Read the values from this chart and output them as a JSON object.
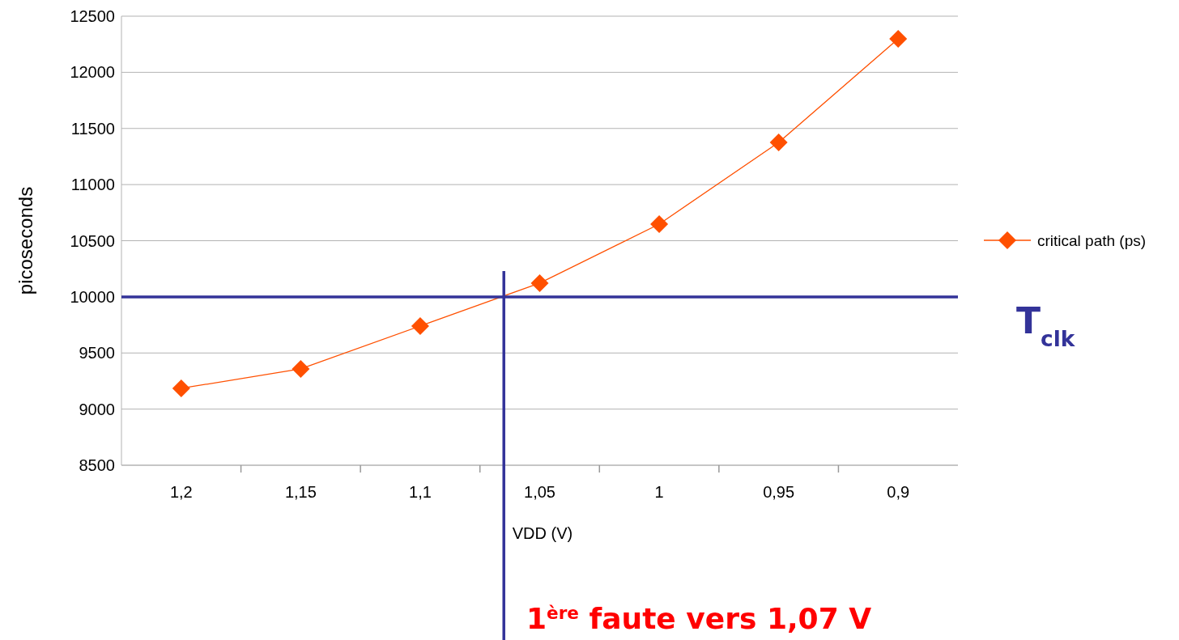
{
  "chart_data": {
    "type": "line",
    "xlabel": "VDD (V)",
    "ylabel": "picoseconds",
    "x": [
      1.2,
      1.15,
      1.1,
      1.05,
      1,
      0.95,
      0.9
    ],
    "series": [
      {
        "name": "critical path (ps)",
        "color": "#ff5000",
        "values": [
          9185,
          9358,
          9740,
          10122,
          10648,
          11376,
          12298
        ]
      }
    ],
    "xlim": [
      1.225,
      0.875
    ],
    "xticks": [
      {
        "value": 1.2,
        "label": "1,2"
      },
      {
        "value": 1.175,
        "label": null
      },
      {
        "value": 1.15,
        "label": "1,15"
      },
      {
        "value": 1.125,
        "label": null
      },
      {
        "value": 1.1,
        "label": "1,1"
      },
      {
        "value": 1.075,
        "label": null
      },
      {
        "value": 1.05,
        "label": "1,05"
      },
      {
        "value": 1.025,
        "label": null
      },
      {
        "value": 1,
        "label": "1"
      },
      {
        "value": 0.975,
        "label": null
      },
      {
        "value": 0.95,
        "label": "0,95"
      },
      {
        "value": 0.925,
        "label": null
      },
      {
        "value": 0.9,
        "label": "0,9"
      }
    ],
    "ylim": [
      8500,
      12500
    ],
    "yticks": [
      8500,
      9000,
      9500,
      10000,
      10500,
      11000,
      11500,
      12000,
      12500
    ],
    "grid": "y",
    "legend": "right",
    "marker": "diamond",
    "line_style": "solid",
    "ref_lines": [
      {
        "axis": "y",
        "value": 10000,
        "label": "T$_{clk}$",
        "color": "#333399"
      },
      {
        "axis": "x",
        "value": 1.065,
        "color": "#333399"
      }
    ],
    "annotations": [
      "1$^{ère}$ faute vers 1,07 V"
    ]
  }
}
